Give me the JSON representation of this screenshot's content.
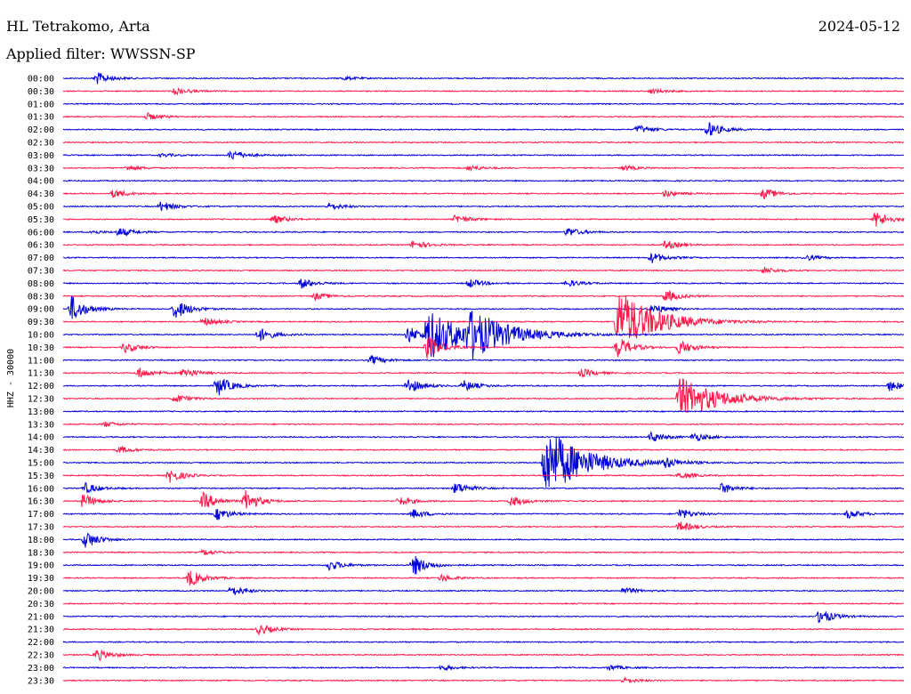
{
  "header": {
    "station": "HL Tetrakomo, Arta",
    "date": "2024-05-12",
    "filter": "Applied filter: WWSSN-SP"
  },
  "chart_data": {
    "type": "line",
    "chart_kind": "helicorder",
    "ylabel": "HHZ - 30000",
    "colors": [
      "#0000d8",
      "#ff1a4a"
    ],
    "tick_labels": [
      "00:00",
      "00:30",
      "01:00",
      "01:30",
      "02:00",
      "02:30",
      "03:00",
      "03:30",
      "04:00",
      "04:30",
      "05:00",
      "05:30",
      "06:00",
      "06:30",
      "07:00",
      "07:30",
      "08:00",
      "08:30",
      "09:00",
      "09:30",
      "10:00",
      "10:30",
      "11:00",
      "11:30",
      "12:00",
      "12:30",
      "13:00",
      "13:30",
      "14:00",
      "14:30",
      "15:00",
      "15:30",
      "16:00",
      "16:30",
      "17:00",
      "17:30",
      "18:00",
      "18:30",
      "19:00",
      "19:30",
      "20:00",
      "20:30",
      "21:00",
      "21:30",
      "22:00",
      "22:30",
      "23:00",
      "23:30"
    ],
    "trace_minutes": 30,
    "events": [
      {
        "trace": 0,
        "minute": 1.2,
        "amplitude": 7
      },
      {
        "trace": 0,
        "minute": 10.0,
        "amplitude": 2
      },
      {
        "trace": 1,
        "minute": 4.0,
        "amplitude": 4
      },
      {
        "trace": 1,
        "minute": 21.0,
        "amplitude": 3
      },
      {
        "trace": 3,
        "minute": 3.0,
        "amplitude": 4
      },
      {
        "trace": 4,
        "minute": 20.5,
        "amplitude": 5
      },
      {
        "trace": 4,
        "minute": 23.0,
        "amplitude": 9
      },
      {
        "trace": 6,
        "minute": 6.0,
        "amplitude": 6
      },
      {
        "trace": 6,
        "minute": 3.5,
        "amplitude": 2
      },
      {
        "trace": 7,
        "minute": 2.3,
        "amplitude": 3
      },
      {
        "trace": 7,
        "minute": 14.5,
        "amplitude": 3
      },
      {
        "trace": 7,
        "minute": 20.0,
        "amplitude": 3
      },
      {
        "trace": 9,
        "minute": 1.8,
        "amplitude": 5
      },
      {
        "trace": 9,
        "minute": 21.5,
        "amplitude": 4
      },
      {
        "trace": 9,
        "minute": 25.0,
        "amplitude": 6
      },
      {
        "trace": 10,
        "minute": 3.5,
        "amplitude": 6
      },
      {
        "trace": 10,
        "minute": 9.5,
        "amplitude": 4
      },
      {
        "trace": 11,
        "minute": 7.5,
        "amplitude": 5
      },
      {
        "trace": 11,
        "minute": 14.0,
        "amplitude": 5
      },
      {
        "trace": 11,
        "minute": 29.0,
        "amplitude": 9
      },
      {
        "trace": 12,
        "minute": 1.0,
        "amplitude": 2
      },
      {
        "trace": 12,
        "minute": 2.0,
        "amplitude": 5
      },
      {
        "trace": 12,
        "minute": 18.0,
        "amplitude": 5
      },
      {
        "trace": 13,
        "minute": 12.5,
        "amplitude": 5
      },
      {
        "trace": 13,
        "minute": 21.5,
        "amplitude": 5
      },
      {
        "trace": 14,
        "minute": 21.0,
        "amplitude": 6
      },
      {
        "trace": 14,
        "minute": 26.5,
        "amplitude": 3
      },
      {
        "trace": 15,
        "minute": 25.0,
        "amplitude": 4
      },
      {
        "trace": 16,
        "minute": 8.5,
        "amplitude": 6
      },
      {
        "trace": 16,
        "minute": 14.5,
        "amplitude": 5
      },
      {
        "trace": 16,
        "minute": 18.0,
        "amplitude": 4
      },
      {
        "trace": 17,
        "minute": 9.0,
        "amplitude": 4
      },
      {
        "trace": 17,
        "minute": 21.5,
        "amplitude": 7
      },
      {
        "trace": 18,
        "minute": 0.3,
        "amplitude": 15
      },
      {
        "trace": 18,
        "minute": 4.0,
        "amplitude": 12
      },
      {
        "trace": 18,
        "minute": 21.0,
        "amplitude": 6
      },
      {
        "trace": 19,
        "minute": 19.8,
        "amplitude": 35
      },
      {
        "trace": 19,
        "minute": 5.0,
        "amplitude": 5
      },
      {
        "trace": 20,
        "minute": 13.0,
        "amplitude": 28
      },
      {
        "trace": 20,
        "minute": 14.5,
        "amplitude": 22
      },
      {
        "trace": 20,
        "minute": 7.0,
        "amplitude": 8
      },
      {
        "trace": 20,
        "minute": 12.3,
        "amplitude": 10
      },
      {
        "trace": 21,
        "minute": 13.0,
        "amplitude": 14
      },
      {
        "trace": 21,
        "minute": 19.8,
        "amplitude": 12
      },
      {
        "trace": 21,
        "minute": 22.0,
        "amplitude": 8
      },
      {
        "trace": 21,
        "minute": 2.2,
        "amplitude": 6
      },
      {
        "trace": 22,
        "minute": 11.0,
        "amplitude": 5
      },
      {
        "trace": 23,
        "minute": 2.7,
        "amplitude": 6
      },
      {
        "trace": 23,
        "minute": 4.3,
        "amplitude": 6
      },
      {
        "trace": 23,
        "minute": 18.5,
        "amplitude": 5
      },
      {
        "trace": 24,
        "minute": 5.5,
        "amplitude": 12
      },
      {
        "trace": 24,
        "minute": 12.3,
        "amplitude": 9
      },
      {
        "trace": 24,
        "minute": 14.3,
        "amplitude": 6
      },
      {
        "trace": 24,
        "minute": 29.5,
        "amplitude": 6
      },
      {
        "trace": 25,
        "minute": 22.0,
        "amplitude": 24
      },
      {
        "trace": 25,
        "minute": 4.0,
        "amplitude": 5
      },
      {
        "trace": 27,
        "minute": 1.5,
        "amplitude": 3
      },
      {
        "trace": 28,
        "minute": 21.0,
        "amplitude": 6
      },
      {
        "trace": 28,
        "minute": 22.5,
        "amplitude": 5
      },
      {
        "trace": 29,
        "minute": 2.0,
        "amplitude": 4
      },
      {
        "trace": 30,
        "minute": 17.2,
        "amplitude": 40
      },
      {
        "trace": 30,
        "minute": 21.5,
        "amplitude": 5
      },
      {
        "trace": 31,
        "minute": 3.8,
        "amplitude": 8
      },
      {
        "trace": 31,
        "minute": 22.0,
        "amplitude": 4
      },
      {
        "trace": 32,
        "minute": 0.8,
        "amplitude": 6
      },
      {
        "trace": 32,
        "minute": 14.0,
        "amplitude": 7
      },
      {
        "trace": 32,
        "minute": 23.5,
        "amplitude": 6
      },
      {
        "trace": 33,
        "minute": 0.7,
        "amplitude": 8
      },
      {
        "trace": 33,
        "minute": 5.0,
        "amplitude": 10
      },
      {
        "trace": 33,
        "minute": 6.5,
        "amplitude": 12
      },
      {
        "trace": 33,
        "minute": 12.0,
        "amplitude": 5
      },
      {
        "trace": 33,
        "minute": 16.0,
        "amplitude": 6
      },
      {
        "trace": 34,
        "minute": 5.5,
        "amplitude": 7
      },
      {
        "trace": 34,
        "minute": 12.5,
        "amplitude": 5
      },
      {
        "trace": 34,
        "minute": 22.0,
        "amplitude": 6
      },
      {
        "trace": 34,
        "minute": 28.0,
        "amplitude": 5
      },
      {
        "trace": 35,
        "minute": 22.0,
        "amplitude": 6
      },
      {
        "trace": 36,
        "minute": 0.8,
        "amplitude": 10
      },
      {
        "trace": 37,
        "minute": 5.0,
        "amplitude": 3
      },
      {
        "trace": 38,
        "minute": 9.5,
        "amplitude": 6
      },
      {
        "trace": 38,
        "minute": 12.5,
        "amplitude": 12
      },
      {
        "trace": 39,
        "minute": 4.5,
        "amplitude": 10
      },
      {
        "trace": 39,
        "minute": 13.5,
        "amplitude": 4
      },
      {
        "trace": 40,
        "minute": 6.0,
        "amplitude": 6
      },
      {
        "trace": 40,
        "minute": 20.0,
        "amplitude": 4
      },
      {
        "trace": 42,
        "minute": 27.0,
        "amplitude": 9
      },
      {
        "trace": 43,
        "minute": 7.0,
        "amplitude": 6
      },
      {
        "trace": 45,
        "minute": 1.2,
        "amplitude": 7
      },
      {
        "trace": 46,
        "minute": 13.5,
        "amplitude": 3
      },
      {
        "trace": 46,
        "minute": 19.5,
        "amplitude": 3
      },
      {
        "trace": 47,
        "minute": 20.0,
        "amplitude": 3
      }
    ]
  }
}
